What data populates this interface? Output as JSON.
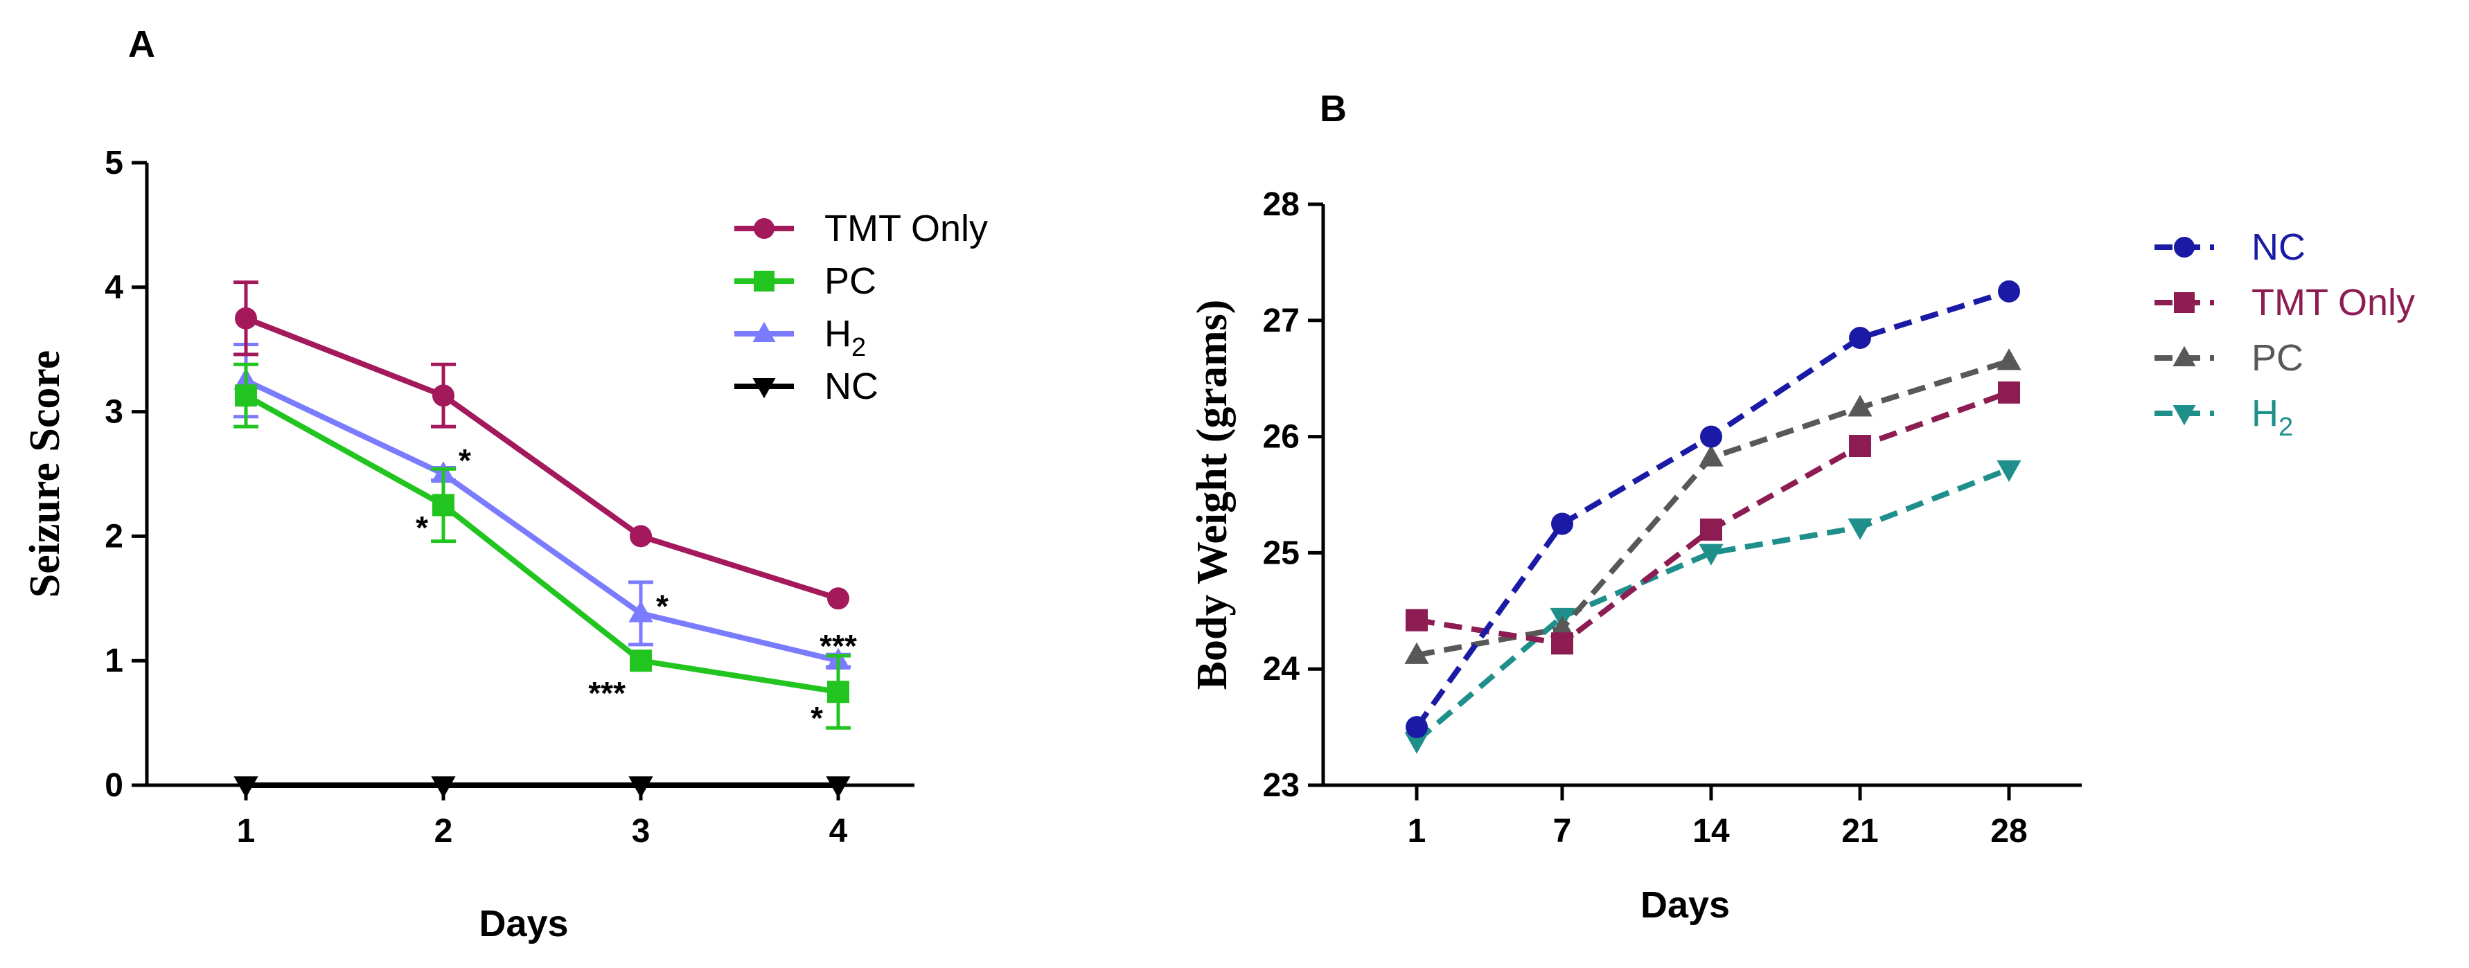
{
  "panels": [
    {
      "id": "A",
      "label": "A",
      "chart_data": {
        "type": "line",
        "title": "",
        "xlabel": "Days",
        "ylabel": "Seizure Score",
        "categories": [
          "1",
          "2",
          "3",
          "4"
        ],
        "ylim": [
          0,
          5
        ],
        "yticks": [
          "0",
          "1",
          "2",
          "3",
          "4",
          "5"
        ],
        "grid": false,
        "legend_position": "top-right",
        "series": [
          {
            "name": "TMT Only",
            "color": "#a3195b",
            "marker": "circle",
            "dash": "solid",
            "values": [
              3.75,
              3.13,
              2.0,
              1.5
            ],
            "errors": [
              0.29,
              0.25,
              0.0,
              0.0
            ]
          },
          {
            "name": "PC",
            "color": "#22c51f",
            "marker": "square",
            "dash": "solid",
            "values": [
              3.13,
              2.25,
              1.0,
              0.75
            ],
            "errors": [
              0.25,
              0.29,
              0.0,
              0.29
            ]
          },
          {
            "name": "H2",
            "color": "#7b7bff",
            "marker": "triangle-up",
            "dash": "solid",
            "values": [
              3.25,
              2.5,
              1.38,
              1.0
            ],
            "errors": [
              0.29,
              0.05,
              0.25,
              0.05
            ]
          },
          {
            "name": "NC",
            "color": "#000000",
            "marker": "triangle-down",
            "dash": "solid",
            "values": [
              0,
              0,
              0,
              0
            ],
            "errors": [
              0,
              0,
              0,
              0
            ]
          }
        ],
        "legend": [
          {
            "text": "TMT Only",
            "sub": ""
          },
          {
            "text": "PC",
            "sub": ""
          },
          {
            "text": "H",
            "sub": "2"
          },
          {
            "text": "NC",
            "sub": ""
          }
        ],
        "annotations": [
          {
            "text": "*",
            "x": "2",
            "y": 2.08,
            "side": "left"
          },
          {
            "text": "*",
            "x": "2",
            "y": 2.62,
            "side": "right"
          },
          {
            "text": "***",
            "x": "3",
            "y": 0.75,
            "side": "left"
          },
          {
            "text": "*",
            "x": "3",
            "y": 1.45,
            "side": "right"
          },
          {
            "text": "*",
            "x": "4",
            "y": 0.55,
            "side": "left"
          },
          {
            "text": "***",
            "x": "4",
            "y": 1.13,
            "side": "center"
          }
        ]
      }
    },
    {
      "id": "B",
      "label": "B",
      "chart_data": {
        "type": "line",
        "title": "",
        "xlabel": "Days",
        "ylabel": "Body Weight (grams)",
        "categories": [
          "1",
          "7",
          "14",
          "21",
          "28"
        ],
        "ylim": [
          23,
          28
        ],
        "yticks": [
          "23",
          "24",
          "25",
          "26",
          "27",
          "28"
        ],
        "grid": false,
        "legend_position": "top-right",
        "series": [
          {
            "name": "NC",
            "color": "#1a1aa6",
            "marker": "circle",
            "dash": "dashed",
            "values": [
              23.5,
              25.25,
              26.0,
              26.85,
              27.25
            ]
          },
          {
            "name": "TMT Only",
            "color": "#8c1c52",
            "marker": "square",
            "dash": "dashed",
            "values": [
              24.42,
              24.22,
              25.2,
              25.92,
              26.38
            ]
          },
          {
            "name": "PC",
            "color": "#585858",
            "marker": "triangle-up",
            "dash": "dashed",
            "values": [
              24.12,
              24.35,
              25.82,
              26.25,
              26.65
            ]
          },
          {
            "name": "H2",
            "color": "#1f8f8c",
            "marker": "triangle-down",
            "dash": "dashed",
            "values": [
              23.38,
              24.45,
              25.0,
              25.22,
              25.72
            ]
          }
        ],
        "legend": [
          {
            "text": "NC",
            "sub": ""
          },
          {
            "text": "TMT Only",
            "sub": ""
          },
          {
            "text": "PC",
            "sub": ""
          },
          {
            "text": "H",
            "sub": "2"
          }
        ]
      }
    }
  ]
}
